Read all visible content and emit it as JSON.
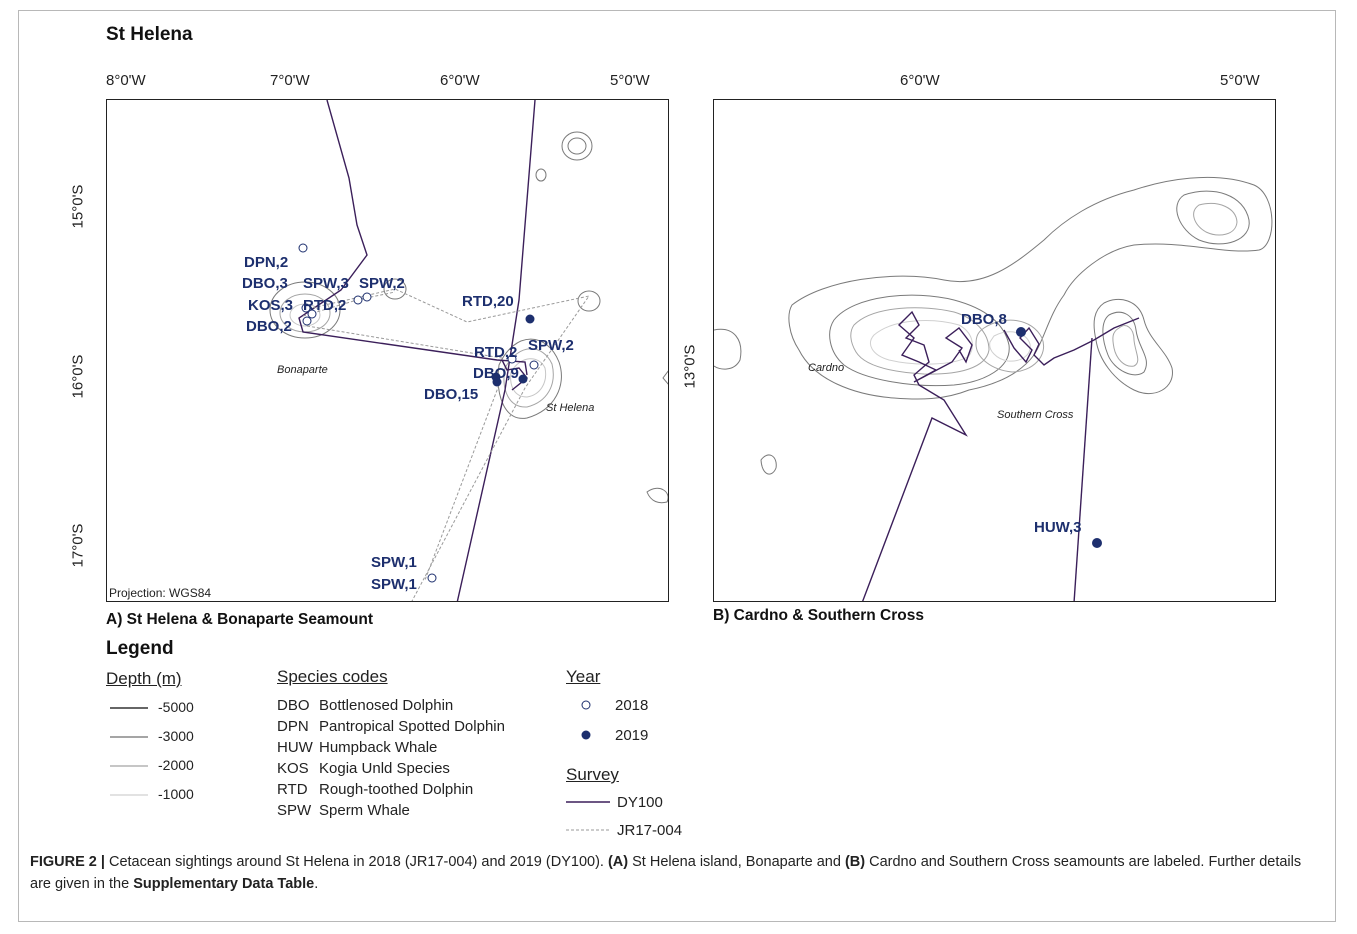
{
  "title": "St Helena",
  "panel_a": {
    "caption": "A) St Helena & Bonaparte Seamount",
    "lon_ticks": [
      "8°0'W",
      "7°0'W",
      "6°0'W",
      "5°0'W"
    ],
    "lat_ticks": [
      "15°0'S",
      "16°0'S",
      "17°0'S"
    ],
    "projection": "Projection: WGS84",
    "places": [
      "Bonaparte",
      "St Helena"
    ],
    "sightings": [
      "DPN,2",
      "DBO,3",
      "SPW,3",
      "SPW,2",
      "KOS,3",
      "RTD,2",
      "DBO,2",
      "RTD,20",
      "RTD,2",
      "SPW,2",
      "DBO,9",
      "DBO,15",
      "SPW,1",
      "SPW,1"
    ]
  },
  "panel_b": {
    "caption": "B) Cardno & Southern Cross",
    "lon_ticks": [
      "6°0'W",
      "5°0'W"
    ],
    "lat_ticks": [
      "13°0'S"
    ],
    "places": [
      "Cardno",
      "Southern Cross"
    ],
    "sightings": [
      "DBO,8",
      "HUW,3"
    ]
  },
  "legend": {
    "title": "Legend",
    "depth_heading": "Depth (m)",
    "depths": [
      "-5000",
      "-3000",
      "-2000",
      "-1000"
    ],
    "species_heading": "Species codes",
    "species": [
      {
        "code": "DBO",
        "name": "Bottlenosed Dolphin"
      },
      {
        "code": "DPN",
        "name": "Pantropical Spotted Dolphin"
      },
      {
        "code": "HUW",
        "name": "Humpback Whale"
      },
      {
        "code": "KOS",
        "name": "Kogia Unld Species"
      },
      {
        "code": "RTD",
        "name": "Rough-toothed Dolphin"
      },
      {
        "code": "SPW",
        "name": "Sperm Whale"
      }
    ],
    "year_heading": "Year",
    "years": [
      "2018",
      "2019"
    ],
    "survey_heading": "Survey",
    "surveys": [
      "DY100",
      "JR17-004"
    ]
  },
  "caption": {
    "label": "FIGURE 2 |",
    "text1": " Cetacean sightings around St Helena in 2018 (JR17-004) and 2019 (DY100). ",
    "a_ref": "(A)",
    "text2": " St Helena island, Bonaparte and ",
    "b_ref": "(B)",
    "text3": " Cardno and Southern Cross seamounts are labeled. Further details are given in the ",
    "supp": "Supplementary Data Table",
    "text4": "."
  },
  "colors": {
    "dy100_track": "#3b1f5a",
    "jr17_track": "#9a9a9a",
    "sighting_2019": "#1d2f6e",
    "sighting_2018": "#ffffff",
    "label": "#1d2f6e",
    "contour": "#7a7a7a"
  }
}
